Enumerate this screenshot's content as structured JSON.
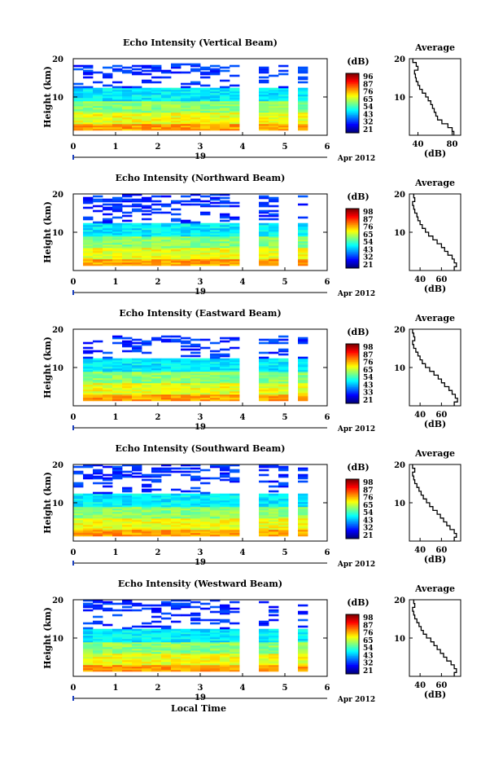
{
  "chart_data": [
    {
      "type": "heatmap",
      "title": "Echo Intensity (Vertical Beam)",
      "ylabel": "Height (km)",
      "ylim": [
        0,
        20
      ],
      "xlim": [
        0,
        6
      ],
      "xticks": [
        "0",
        "1",
        "2",
        "3",
        "4",
        "5",
        "6"
      ],
      "yticks": [
        "10",
        "20"
      ],
      "date_label": "19",
      "month_label": "Apr 2012",
      "colorbar": {
        "unit": "(dB)",
        "ticks": [
          "96",
          "87",
          "76",
          "65",
          "54",
          "43",
          "32",
          "21"
        ]
      },
      "data_gaps_hours": [
        [
          3.85,
          4.35
        ],
        [
          5.05,
          5.3
        ]
      ],
      "data_start_hour": 0.0,
      "data_end_hour": 5.65,
      "top_height_km": [
        18.2,
        18.4,
        18.6,
        18.3,
        18.7,
        18.5,
        18.2,
        18.4,
        18.3,
        18.4
      ],
      "average": {
        "title": "Average",
        "xlabel": "(dB)",
        "xticks": [
          "40",
          "80"
        ],
        "xlim": [
          30,
          90
        ],
        "ylim": [
          0,
          20
        ],
        "yticks": [
          "10",
          "20"
        ],
        "height_km": [
          1,
          2,
          3,
          4,
          5,
          6,
          7,
          8,
          9,
          10,
          11,
          12,
          13,
          14,
          15,
          16,
          17,
          18,
          19,
          20
        ],
        "values_db": [
          82,
          80,
          75,
          68,
          63,
          61,
          59,
          57,
          55,
          52,
          49,
          45,
          42,
          40,
          38,
          37,
          36,
          40,
          38,
          34
        ]
      }
    },
    {
      "type": "heatmap",
      "title": "Echo Intensity (Northward Beam)",
      "ylabel": "Height (km)",
      "ylim": [
        0,
        20
      ],
      "xlim": [
        0,
        6
      ],
      "xticks": [
        "0",
        "1",
        "2",
        "3",
        "4",
        "5",
        "6"
      ],
      "yticks": [
        "10",
        "20"
      ],
      "date_label": "19",
      "month_label": "Apr 2012",
      "colorbar": {
        "unit": "(dB)",
        "ticks": [
          "98",
          "87",
          "76",
          "65",
          "54",
          "43",
          "32",
          "21"
        ]
      },
      "data_gaps_hours": [
        [
          3.85,
          4.35
        ],
        [
          4.95,
          5.3
        ]
      ],
      "data_start_hour": 0.3,
      "data_end_hour": 5.65,
      "top_height_km": [
        19.6,
        19.7,
        19.8,
        19.9,
        19.8,
        19.9,
        19.7,
        19.8,
        19.6,
        19.5
      ],
      "average": {
        "title": "Average",
        "xlabel": "(dB)",
        "xticks": [
          "40",
          "60"
        ],
        "xlim": [
          30,
          78
        ],
        "ylim": [
          0,
          20
        ],
        "yticks": [
          "10",
          "20"
        ],
        "height_km": [
          1,
          2,
          3,
          4,
          5,
          6,
          7,
          8,
          9,
          10,
          11,
          12,
          13,
          14,
          15,
          16,
          17,
          18,
          19,
          20
        ],
        "values_db": [
          72,
          74,
          72,
          70,
          66,
          63,
          60,
          56,
          52,
          48,
          45,
          42,
          40,
          38,
          37,
          35,
          34,
          33,
          35,
          34
        ]
      }
    },
    {
      "type": "heatmap",
      "title": "Echo Intensity (Eastward Beam)",
      "ylabel": "Height (km)",
      "ylim": [
        0,
        20
      ],
      "xlim": [
        0,
        6
      ],
      "xticks": [
        "0",
        "1",
        "2",
        "3",
        "4",
        "5",
        "6"
      ],
      "yticks": [
        "10",
        "20"
      ],
      "date_label": "19",
      "month_label": "Apr 2012",
      "colorbar": {
        "unit": "(dB)",
        "ticks": [
          "98",
          "87",
          "76",
          "65",
          "54",
          "43",
          "33",
          "21"
        ]
      },
      "data_gaps_hours": [
        [
          3.85,
          4.35
        ],
        [
          5.0,
          5.35
        ]
      ],
      "data_start_hour": 0.3,
      "data_end_hour": 5.65,
      "top_height_km": [
        18.0,
        18.2,
        18.0,
        18.2,
        18.1,
        18.0,
        18.1,
        18.0,
        18.2,
        17.8
      ],
      "average": {
        "title": "Average",
        "xlabel": "(dB)",
        "xticks": [
          "40",
          "60"
        ],
        "xlim": [
          30,
          78
        ],
        "ylim": [
          0,
          20
        ],
        "yticks": [
          "10",
          "20"
        ],
        "height_km": [
          1,
          2,
          3,
          4,
          5,
          6,
          7,
          8,
          9,
          10,
          11,
          12,
          13,
          14,
          15,
          16,
          17,
          18,
          19,
          20
        ],
        "values_db": [
          72,
          75,
          73,
          70,
          67,
          63,
          60,
          57,
          53,
          49,
          45,
          42,
          40,
          38,
          36,
          34,
          33,
          35,
          34,
          33
        ]
      }
    },
    {
      "type": "heatmap",
      "title": "Echo Intensity (Southward Beam)",
      "ylabel": "Height (km)",
      "ylim": [
        0,
        20
      ],
      "xlim": [
        0,
        6
      ],
      "xticks": [
        "0",
        "1",
        "2",
        "3",
        "4",
        "5",
        "6"
      ],
      "yticks": [
        "10",
        "20"
      ],
      "date_label": "19",
      "month_label": "Apr 2012",
      "colorbar": {
        "unit": "(dB)",
        "ticks": [
          "98",
          "87",
          "76",
          "65",
          "54",
          "43",
          "32",
          "21"
        ]
      },
      "data_gaps_hours": [
        [
          3.85,
          4.35
        ],
        [
          5.0,
          5.3
        ]
      ],
      "data_start_hour": 0.0,
      "data_end_hour": 5.65,
      "top_height_km": [
        19.8,
        19.9,
        19.9,
        19.8,
        19.9,
        19.9,
        19.8,
        19.9,
        19.7,
        19.6
      ],
      "average": {
        "title": "Average",
        "xlabel": "(dB)",
        "xticks": [
          "40",
          "60"
        ],
        "xlim": [
          30,
          78
        ],
        "ylim": [
          0,
          20
        ],
        "yticks": [
          "10",
          "20"
        ],
        "height_km": [
          1,
          2,
          3,
          4,
          5,
          6,
          7,
          8,
          9,
          10,
          11,
          12,
          13,
          14,
          15,
          16,
          17,
          18,
          19,
          20
        ],
        "values_db": [
          72,
          74,
          72,
          68,
          65,
          62,
          59,
          56,
          52,
          49,
          46,
          43,
          41,
          39,
          37,
          35,
          34,
          33,
          35,
          33
        ]
      }
    },
    {
      "type": "heatmap",
      "title": "Echo Intensity (Westward Beam)",
      "ylabel": "Height (km)",
      "ylim": [
        0,
        20
      ],
      "xlim": [
        0,
        6
      ],
      "xticks": [
        "0",
        "1",
        "2",
        "3",
        "4",
        "5",
        "6"
      ],
      "yticks": [
        "10",
        "20"
      ],
      "date_label": "19",
      "month_label": "Apr 2012",
      "xlabel": "Local Time",
      "colorbar": {
        "unit": "(dB)",
        "ticks": [
          "98",
          "87",
          "76",
          "65",
          "54",
          "43",
          "32",
          "21"
        ]
      },
      "data_gaps_hours": [
        [
          3.85,
          4.35
        ],
        [
          4.85,
          5.3
        ]
      ],
      "data_start_hour": 0.3,
      "data_end_hour": 5.65,
      "top_height_km": [
        19.8,
        19.9,
        19.8,
        19.9,
        19.8,
        19.9,
        19.8,
        19.7,
        19.5,
        19.0
      ],
      "average": {
        "title": "Average",
        "xlabel": "(dB)",
        "xticks": [
          "40",
          "60"
        ],
        "xlim": [
          30,
          78
        ],
        "ylim": [
          0,
          20
        ],
        "yticks": [
          "10",
          "20"
        ],
        "height_km": [
          1,
          2,
          3,
          4,
          5,
          6,
          7,
          8,
          9,
          10,
          11,
          12,
          13,
          14,
          15,
          16,
          17,
          18,
          19,
          20
        ],
        "values_db": [
          72,
          74,
          72,
          69,
          65,
          62,
          59,
          56,
          53,
          50,
          46,
          43,
          41,
          39,
          37,
          35,
          34,
          33,
          35,
          34
        ]
      }
    }
  ]
}
